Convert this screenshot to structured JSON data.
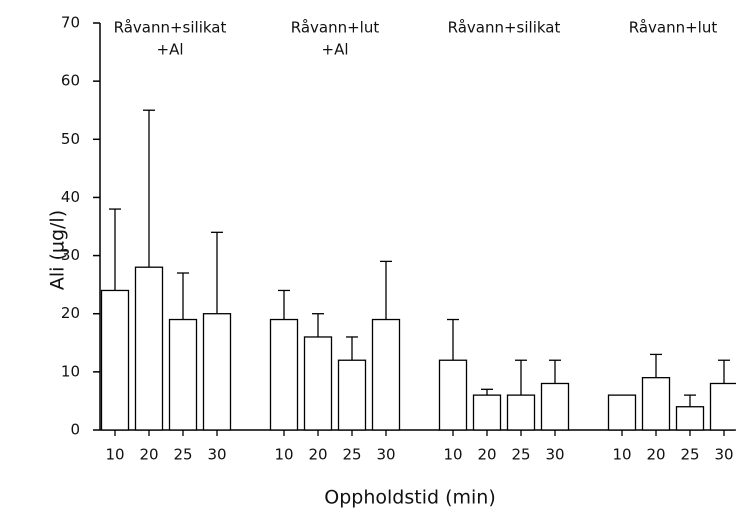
{
  "chart_data": {
    "type": "bar",
    "ylabel": "Ali (µg/l)",
    "xlabel": "Oppholdstid (min)",
    "ylim": [
      0,
      70
    ],
    "yticks": [
      0,
      10,
      20,
      30,
      40,
      50,
      60,
      70
    ],
    "color": "#ffffff",
    "edgecolor": "#000000",
    "groups": [
      {
        "label": [
          "Råvann+silikat",
          "+Al"
        ],
        "categories": [
          "10",
          "20",
          "25",
          "30"
        ],
        "values": [
          24,
          28,
          19,
          20
        ],
        "errors": [
          14,
          27,
          8,
          14
        ]
      },
      {
        "label": [
          "Råvann+lut",
          "+Al"
        ],
        "categories": [
          "10",
          "20",
          "25",
          "30"
        ],
        "values": [
          19,
          16,
          12,
          19
        ],
        "errors": [
          5,
          4,
          4,
          10
        ]
      },
      {
        "label": [
          "Råvann+silikat"
        ],
        "categories": [
          "10",
          "20",
          "25",
          "30"
        ],
        "values": [
          12,
          6,
          6,
          8
        ],
        "errors": [
          7,
          1,
          6,
          4
        ]
      },
      {
        "label": [
          "Råvann+lut"
        ],
        "categories": [
          "10",
          "20",
          "25",
          "30"
        ],
        "values": [
          6,
          9,
          4,
          8
        ],
        "errors": [
          null,
          4,
          2,
          4
        ]
      }
    ]
  }
}
